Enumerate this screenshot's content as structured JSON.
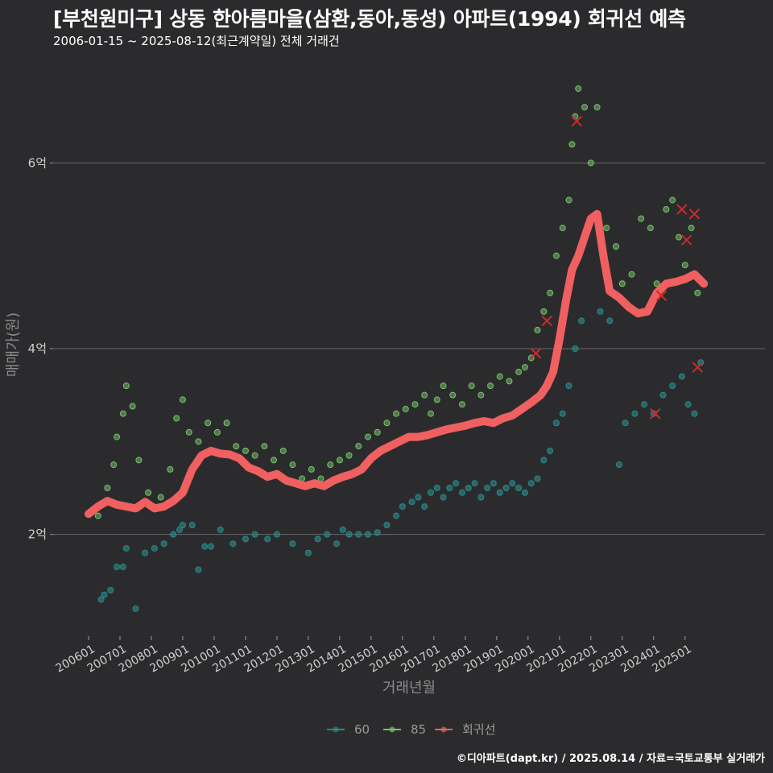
{
  "header": {
    "title": "[부천원미구] 상동 한아름마을(삼환,동아,동성) 아파트(1994) 회귀선 예측",
    "subtitle": "2006-01-15 ~ 2025-08-12(최근계약일) 전체 거래건"
  },
  "caption": "©디아파트(dapt.kr) / 2025.08.14 / 자료=국토교통부 실거래가",
  "chart_data": {
    "type": "scatter",
    "xlabel": "거래년월",
    "ylabel": "매매가(원)",
    "x_range": [
      "2006-01",
      "2025-08"
    ],
    "ylim": [
      1.0,
      7.0
    ],
    "y_ticks": [
      {
        "value": 2,
        "label": "2억"
      },
      {
        "value": 4,
        "label": "4억"
      },
      {
        "value": 6,
        "label": "6억"
      }
    ],
    "x_ticks": [
      "200601",
      "200701",
      "200801",
      "200901",
      "201001",
      "201101",
      "201201",
      "201301",
      "201401",
      "201501",
      "201601",
      "201701",
      "201801",
      "201901",
      "202001",
      "202101",
      "202201",
      "202301",
      "202401",
      "202501"
    ],
    "grid": "horizontal",
    "legend_position": "bottom",
    "colors": {
      "s60": "#2a8a8a",
      "s85": "#76c36a",
      "reg": "#f06060",
      "grid": "#6a6a6a"
    },
    "series": [
      {
        "name": "60",
        "points": [
          [
            2006.4,
            1.3
          ],
          [
            2006.5,
            1.35
          ],
          [
            2006.7,
            1.4
          ],
          [
            2006.9,
            1.65
          ],
          [
            2007.1,
            1.65
          ],
          [
            2007.2,
            1.85
          ],
          [
            2007.5,
            1.2
          ],
          [
            2007.8,
            1.8
          ],
          [
            2008.1,
            1.85
          ],
          [
            2008.4,
            1.9
          ],
          [
            2008.7,
            2.0
          ],
          [
            2008.9,
            2.05
          ],
          [
            2009.0,
            2.1
          ],
          [
            2009.3,
            2.1
          ],
          [
            2009.5,
            1.62
          ],
          [
            2009.7,
            1.87
          ],
          [
            2009.9,
            1.87
          ],
          [
            2010.2,
            2.05
          ],
          [
            2010.6,
            1.9
          ],
          [
            2011.0,
            1.95
          ],
          [
            2011.3,
            2.0
          ],
          [
            2011.7,
            1.95
          ],
          [
            2012.0,
            2.0
          ],
          [
            2012.5,
            1.9
          ],
          [
            2013.0,
            1.8
          ],
          [
            2013.3,
            1.95
          ],
          [
            2013.6,
            2.0
          ],
          [
            2013.9,
            1.9
          ],
          [
            2014.1,
            2.05
          ],
          [
            2014.3,
            2.0
          ],
          [
            2014.6,
            2.0
          ],
          [
            2014.9,
            2.0
          ],
          [
            2015.2,
            2.02
          ],
          [
            2015.5,
            2.1
          ],
          [
            2015.8,
            2.2
          ],
          [
            2016.0,
            2.3
          ],
          [
            2016.3,
            2.35
          ],
          [
            2016.5,
            2.4
          ],
          [
            2016.7,
            2.3
          ],
          [
            2016.9,
            2.45
          ],
          [
            2017.1,
            2.5
          ],
          [
            2017.3,
            2.4
          ],
          [
            2017.5,
            2.5
          ],
          [
            2017.7,
            2.55
          ],
          [
            2017.9,
            2.45
          ],
          [
            2018.1,
            2.5
          ],
          [
            2018.3,
            2.55
          ],
          [
            2018.5,
            2.4
          ],
          [
            2018.7,
            2.5
          ],
          [
            2018.9,
            2.55
          ],
          [
            2019.1,
            2.45
          ],
          [
            2019.3,
            2.5
          ],
          [
            2019.5,
            2.55
          ],
          [
            2019.7,
            2.5
          ],
          [
            2019.9,
            2.45
          ],
          [
            2020.1,
            2.55
          ],
          [
            2020.3,
            2.6
          ],
          [
            2020.5,
            2.8
          ],
          [
            2020.7,
            2.9
          ],
          [
            2020.9,
            3.2
          ],
          [
            2021.1,
            3.3
          ],
          [
            2021.3,
            3.6
          ],
          [
            2021.5,
            4.0
          ],
          [
            2021.7,
            4.3
          ],
          [
            2022.3,
            4.4
          ],
          [
            2022.6,
            4.3
          ],
          [
            2022.9,
            2.75
          ],
          [
            2023.1,
            3.2
          ],
          [
            2023.4,
            3.3
          ],
          [
            2023.7,
            3.4
          ],
          [
            2024.0,
            3.3
          ],
          [
            2024.3,
            3.5
          ],
          [
            2024.6,
            3.6
          ],
          [
            2024.9,
            3.7
          ],
          [
            2025.1,
            3.4
          ],
          [
            2025.3,
            3.3
          ],
          [
            2025.5,
            3.85
          ]
        ]
      },
      {
        "name": "85",
        "points": [
          [
            2006.3,
            2.2
          ],
          [
            2006.6,
            2.5
          ],
          [
            2006.8,
            2.75
          ],
          [
            2006.9,
            3.05
          ],
          [
            2007.1,
            3.3
          ],
          [
            2007.2,
            3.6
          ],
          [
            2007.4,
            3.38
          ],
          [
            2007.6,
            2.8
          ],
          [
            2007.9,
            2.45
          ],
          [
            2008.3,
            2.4
          ],
          [
            2008.6,
            2.7
          ],
          [
            2008.8,
            3.25
          ],
          [
            2009.0,
            3.45
          ],
          [
            2009.2,
            3.1
          ],
          [
            2009.5,
            3.0
          ],
          [
            2009.8,
            3.2
          ],
          [
            2010.1,
            3.1
          ],
          [
            2010.4,
            3.2
          ],
          [
            2010.7,
            2.95
          ],
          [
            2011.0,
            2.9
          ],
          [
            2011.3,
            2.85
          ],
          [
            2011.6,
            2.95
          ],
          [
            2011.9,
            2.8
          ],
          [
            2012.2,
            2.9
          ],
          [
            2012.5,
            2.75
          ],
          [
            2012.8,
            2.6
          ],
          [
            2013.1,
            2.7
          ],
          [
            2013.4,
            2.6
          ],
          [
            2013.7,
            2.75
          ],
          [
            2014.0,
            2.8
          ],
          [
            2014.3,
            2.85
          ],
          [
            2014.6,
            2.95
          ],
          [
            2014.9,
            3.05
          ],
          [
            2015.2,
            3.1
          ],
          [
            2015.5,
            3.2
          ],
          [
            2015.8,
            3.3
          ],
          [
            2016.1,
            3.35
          ],
          [
            2016.4,
            3.4
          ],
          [
            2016.7,
            3.5
          ],
          [
            2016.9,
            3.3
          ],
          [
            2017.1,
            3.45
          ],
          [
            2017.3,
            3.6
          ],
          [
            2017.6,
            3.5
          ],
          [
            2017.9,
            3.4
          ],
          [
            2018.2,
            3.6
          ],
          [
            2018.5,
            3.5
          ],
          [
            2018.8,
            3.6
          ],
          [
            2019.1,
            3.7
          ],
          [
            2019.4,
            3.65
          ],
          [
            2019.7,
            3.75
          ],
          [
            2019.9,
            3.8
          ],
          [
            2020.1,
            3.9
          ],
          [
            2020.3,
            4.2
          ],
          [
            2020.5,
            4.4
          ],
          [
            2020.7,
            4.6
          ],
          [
            2020.9,
            5.0
          ],
          [
            2021.1,
            5.3
          ],
          [
            2021.3,
            5.6
          ],
          [
            2021.4,
            6.2
          ],
          [
            2021.5,
            6.5
          ],
          [
            2021.6,
            6.8
          ],
          [
            2021.8,
            6.6
          ],
          [
            2022.0,
            6.0
          ],
          [
            2022.2,
            6.6
          ],
          [
            2022.5,
            5.3
          ],
          [
            2022.8,
            5.1
          ],
          [
            2023.0,
            4.7
          ],
          [
            2023.3,
            4.8
          ],
          [
            2023.6,
            5.4
          ],
          [
            2023.9,
            5.3
          ],
          [
            2024.1,
            4.7
          ],
          [
            2024.4,
            5.5
          ],
          [
            2024.6,
            5.6
          ],
          [
            2024.8,
            5.2
          ],
          [
            2025.0,
            4.9
          ],
          [
            2025.2,
            5.3
          ],
          [
            2025.4,
            4.6
          ]
        ]
      },
      {
        "name": "회귀선",
        "points": [
          [
            2006.0,
            2.22
          ],
          [
            2006.3,
            2.3
          ],
          [
            2006.6,
            2.36
          ],
          [
            2006.9,
            2.32
          ],
          [
            2007.2,
            2.3
          ],
          [
            2007.5,
            2.28
          ],
          [
            2007.8,
            2.35
          ],
          [
            2008.1,
            2.28
          ],
          [
            2008.4,
            2.3
          ],
          [
            2008.7,
            2.36
          ],
          [
            2009.0,
            2.45
          ],
          [
            2009.3,
            2.7
          ],
          [
            2009.6,
            2.85
          ],
          [
            2009.9,
            2.9
          ],
          [
            2010.2,
            2.87
          ],
          [
            2010.5,
            2.86
          ],
          [
            2010.8,
            2.82
          ],
          [
            2011.1,
            2.72
          ],
          [
            2011.4,
            2.68
          ],
          [
            2011.7,
            2.62
          ],
          [
            2012.0,
            2.65
          ],
          [
            2012.3,
            2.58
          ],
          [
            2012.6,
            2.55
          ],
          [
            2012.9,
            2.52
          ],
          [
            2013.2,
            2.55
          ],
          [
            2013.5,
            2.52
          ],
          [
            2013.8,
            2.58
          ],
          [
            2014.1,
            2.62
          ],
          [
            2014.4,
            2.65
          ],
          [
            2014.7,
            2.7
          ],
          [
            2015.0,
            2.82
          ],
          [
            2015.3,
            2.9
          ],
          [
            2015.6,
            2.95
          ],
          [
            2015.9,
            3.0
          ],
          [
            2016.2,
            3.05
          ],
          [
            2016.5,
            3.05
          ],
          [
            2016.8,
            3.07
          ],
          [
            2017.1,
            3.1
          ],
          [
            2017.4,
            3.13
          ],
          [
            2017.7,
            3.15
          ],
          [
            2018.0,
            3.17
          ],
          [
            2018.3,
            3.2
          ],
          [
            2018.6,
            3.22
          ],
          [
            2018.9,
            3.2
          ],
          [
            2019.2,
            3.25
          ],
          [
            2019.5,
            3.28
          ],
          [
            2019.8,
            3.35
          ],
          [
            2020.1,
            3.42
          ],
          [
            2020.4,
            3.5
          ],
          [
            2020.6,
            3.6
          ],
          [
            2020.8,
            3.75
          ],
          [
            2021.0,
            4.1
          ],
          [
            2021.2,
            4.5
          ],
          [
            2021.4,
            4.85
          ],
          [
            2021.6,
            5.0
          ],
          [
            2021.8,
            5.2
          ],
          [
            2022.0,
            5.4
          ],
          [
            2022.2,
            5.45
          ],
          [
            2022.4,
            5.0
          ],
          [
            2022.6,
            4.62
          ],
          [
            2022.9,
            4.55
          ],
          [
            2023.2,
            4.45
          ],
          [
            2023.5,
            4.38
          ],
          [
            2023.8,
            4.4
          ],
          [
            2024.1,
            4.6
          ],
          [
            2024.4,
            4.7
          ],
          [
            2024.7,
            4.72
          ],
          [
            2025.0,
            4.75
          ],
          [
            2025.3,
            4.8
          ],
          [
            2025.6,
            4.7
          ]
        ]
      }
    ],
    "markers": [
      [
        2020.25,
        3.95
      ],
      [
        2020.6,
        4.3
      ],
      [
        2021.55,
        6.45
      ],
      [
        2024.05,
        3.3
      ],
      [
        2024.25,
        4.57
      ],
      [
        2024.9,
        5.5
      ],
      [
        2025.05,
        5.17
      ],
      [
        2025.3,
        5.45
      ],
      [
        2025.4,
        3.8
      ]
    ]
  }
}
